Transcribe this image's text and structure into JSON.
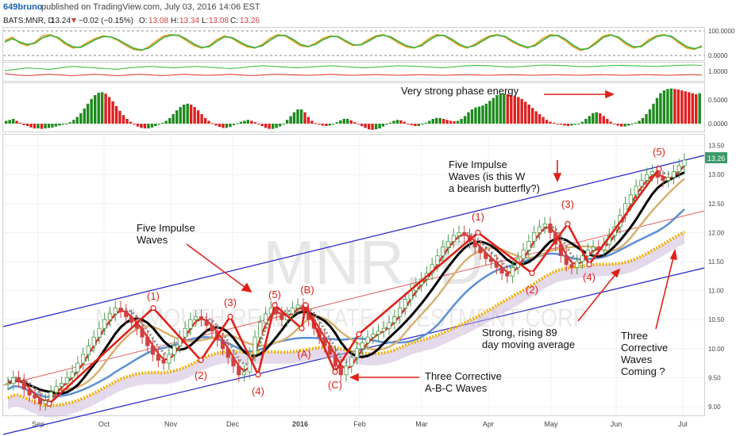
{
  "header": {
    "author": "649bruno",
    "published": "published on TradingView.com, July 03, 2016 14:06 EST",
    "symbol": "BATS:MNR, D",
    "last": "13.24",
    "change": "−0.02 (−0.15%)",
    "open_label": "O:",
    "open": "13.08",
    "high_label": "H:",
    "high": "13.34",
    "low_label": "L:",
    "low": "13.08",
    "close_label": "C:",
    "close": "13.26"
  },
  "watermark": {
    "ticker": "MNR, D",
    "company": "MONMOUTH REAL ESTATE INVESTMENT CORP"
  },
  "colors": {
    "up": "#4a9a4a",
    "down": "#d04040",
    "wave": "#e0201a",
    "channel": "#2222cc",
    "ma_black": "#000000",
    "ma_blue": "#5b8fd6",
    "ma_tan": "#d9b070",
    "ma_gray": "#8a8a8a",
    "ma_89": "#f0b000",
    "cloud": "#c9b6d8"
  },
  "chart_data": [
    {
      "type": "line",
      "panel": "oscillator-1",
      "y_ticks": [
        "100.0000",
        "0.0000"
      ],
      "ylim": [
        0,
        100
      ],
      "series": [
        {
          "values": [
            60,
            75,
            50,
            40,
            55,
            80,
            85,
            70,
            45,
            30,
            35,
            55,
            70,
            80,
            75,
            60,
            40,
            25,
            20,
            35,
            60,
            80,
            85,
            80,
            60,
            40,
            30,
            40,
            65,
            80,
            70,
            50,
            35,
            30,
            45,
            70,
            85,
            80,
            60,
            40,
            35,
            50,
            70,
            80,
            75,
            55,
            40,
            45,
            65,
            80,
            85,
            70,
            50,
            35,
            30,
            45,
            70,
            85,
            80,
            60,
            40,
            30,
            45,
            65,
            80,
            85,
            75,
            55,
            40,
            30,
            45,
            70,
            85,
            80,
            60,
            35,
            20,
            30,
            55,
            80,
            85,
            70,
            45,
            30,
            40,
            65,
            80,
            85,
            75,
            50,
            30,
            25,
            40
          ]
        },
        {
          "values": [
            55,
            68,
            55,
            45,
            50,
            72,
            82,
            74,
            52,
            35,
            33,
            48,
            65,
            77,
            76,
            64,
            46,
            30,
            22,
            30,
            52,
            74,
            83,
            82,
            66,
            46,
            33,
            36,
            58,
            76,
            73,
            56,
            40,
            32,
            40,
            62,
            80,
            82,
            66,
            46,
            36,
            45,
            64,
            77,
            77,
            60,
            44,
            43,
            58,
            76,
            83,
            75,
            56,
            40,
            32,
            40,
            62,
            80,
            82,
            66,
            46,
            33,
            40,
            58,
            76,
            83,
            78,
            60,
            44,
            33,
            40,
            62,
            80,
            82,
            66,
            42,
            25,
            28,
            48,
            74,
            83,
            75,
            52,
            35,
            36,
            58,
            76,
            83,
            78,
            56,
            36,
            28,
            35
          ]
        }
      ]
    },
    {
      "type": "line",
      "panel": "oscillator-2",
      "y_ticks": [
        "1.0000"
      ],
      "series": [
        {
          "values": [
            0.6,
            0.7,
            0.8,
            0.75,
            0.7,
            0.8,
            0.9,
            0.85,
            0.8,
            0.75,
            0.7,
            0.8,
            0.85,
            0.9,
            0.85,
            0.8,
            0.85,
            0.9,
            0.85,
            0.8,
            0.75,
            0.8,
            0.9,
            0.95,
            0.9,
            0.85,
            0.8,
            0.85,
            0.9,
            0.95,
            0.9,
            0.85,
            0.8,
            0.85,
            0.9,
            0.95,
            0.92,
            0.9,
            0.85,
            0.8,
            0.88,
            0.95,
            0.98,
            0.95,
            0.9,
            0.85,
            0.9,
            0.95,
            1.0,
            0.98,
            0.95,
            0.9,
            0.88,
            0.92,
            0.96,
            0.98,
            0.95,
            0.92,
            0.9,
            0.94,
            0.98,
            1.0,
            0.97
          ]
        },
        {
          "values": [
            0.4,
            0.3,
            0.25,
            0.3,
            0.35,
            0.3,
            0.25,
            0.3,
            0.35,
            0.3,
            0.25,
            0.3,
            0.35,
            0.3,
            0.25,
            0.3,
            0.35,
            0.3,
            0.28,
            0.3,
            0.35,
            0.3,
            0.25,
            0.3,
            0.35,
            0.32,
            0.3,
            0.28,
            0.3,
            0.35,
            0.3,
            0.28,
            0.3,
            0.33,
            0.3,
            0.28,
            0.3,
            0.32,
            0.3,
            0.28,
            0.3,
            0.32,
            0.3,
            0.28,
            0.3,
            0.32,
            0.3,
            0.28,
            0.3,
            0.32,
            0.3,
            0.28,
            0.3,
            0.32,
            0.3,
            0.28,
            0.3,
            0.32,
            0.3,
            0.28,
            0.3,
            0.32,
            0.3
          ]
        }
      ]
    },
    {
      "type": "bar",
      "panel": "phase-energy-histogram",
      "y_ticks": [
        "0.5000",
        "0.0000"
      ],
      "ylim": [
        -0.2,
        0.8
      ],
      "values": [
        0.06,
        0.08,
        0.1,
        0.06,
        0.02,
        -0.03,
        -0.05,
        -0.08,
        -0.1,
        -0.1,
        -0.11,
        -0.1,
        -0.09,
        -0.08,
        -0.06,
        -0.04,
        -0.02,
        0.0,
        0.03,
        0.08,
        0.14,
        0.22,
        0.32,
        0.42,
        0.52,
        0.6,
        0.65,
        0.66,
        0.63,
        0.56,
        0.47,
        0.37,
        0.27,
        0.18,
        0.1,
        0.04,
        -0.02,
        -0.06,
        -0.09,
        -0.1,
        -0.1,
        -0.08,
        -0.05,
        -0.02,
        0.02,
        0.06,
        0.12,
        0.2,
        0.28,
        0.35,
        0.4,
        0.42,
        0.4,
        0.35,
        0.28,
        0.2,
        0.12,
        0.06,
        0.01,
        -0.04,
        -0.07,
        -0.09,
        -0.09,
        -0.07,
        -0.03,
        0.01,
        0.04,
        0.06,
        0.08,
        0.06,
        0.03,
        -0.01,
        -0.05,
        -0.09,
        -0.11,
        -0.11,
        -0.09,
        -0.06,
        0.0,
        0.08,
        0.16,
        0.24,
        0.3,
        0.3,
        0.24,
        0.14,
        0.06,
        0.01,
        -0.02,
        -0.04,
        -0.05,
        -0.04,
        -0.01,
        0.03,
        0.07,
        0.1,
        0.1,
        0.07,
        0.03,
        -0.01,
        -0.05,
        -0.09,
        -0.12,
        -0.13,
        -0.12,
        -0.1,
        -0.06,
        -0.02,
        0.02,
        0.06,
        0.08,
        0.07,
        0.04,
        0.0,
        -0.03,
        -0.05,
        -0.05,
        -0.02,
        0.02,
        0.06,
        0.1,
        0.12,
        0.12,
        0.1,
        0.08,
        0.06,
        0.05,
        0.06,
        0.1,
        0.16,
        0.24,
        0.3,
        0.34,
        0.36,
        0.38,
        0.42,
        0.48,
        0.54,
        0.6,
        0.62,
        0.63,
        0.62,
        0.6,
        0.58,
        0.56,
        0.52,
        0.46,
        0.4,
        0.33,
        0.26,
        0.2,
        0.14,
        0.08,
        0.04,
        0.02,
        0.0,
        -0.02,
        -0.04,
        -0.05,
        -0.04,
        -0.02,
        0.0,
        0.04,
        0.1,
        0.16,
        0.22,
        0.24,
        0.22,
        0.16,
        0.1,
        0.04,
        -0.01,
        -0.04,
        -0.06,
        -0.06,
        -0.04,
        -0.01,
        0.02,
        0.06,
        0.12,
        0.2,
        0.3,
        0.42,
        0.54,
        0.64,
        0.7,
        0.73,
        0.74,
        0.73,
        0.72,
        0.7,
        0.68,
        0.66,
        0.64,
        0.62,
        0.64
      ]
    },
    {
      "type": "line",
      "panel": "price",
      "title": "",
      "x_ticks": [
        "Sep",
        "Oct",
        "Nov",
        "Dec",
        "2016",
        "Feb",
        "Mar",
        "Apr",
        "May",
        "Jun",
        "Jul"
      ],
      "y_ticks": [
        "13.50",
        "13.00",
        "12.50",
        "12.00",
        "11.50",
        "11.00",
        "10.50",
        "10.00",
        "9.50",
        "9.00"
      ],
      "ylim": [
        8.9,
        13.6
      ],
      "last_price_label": "13.26",
      "close": [
        9.4,
        9.5,
        9.45,
        9.3,
        9.2,
        9.15,
        9.05,
        9.1,
        9.25,
        9.35,
        9.4,
        9.5,
        9.6,
        9.75,
        9.9,
        10.05,
        10.2,
        10.35,
        10.5,
        10.6,
        10.7,
        10.65,
        10.55,
        10.45,
        10.35,
        10.2,
        10.05,
        9.9,
        9.8,
        9.75,
        9.9,
        10.05,
        10.2,
        10.35,
        10.5,
        10.55,
        10.5,
        10.4,
        10.3,
        10.15,
        10.0,
        9.85,
        9.7,
        9.55,
        9.6,
        9.9,
        10.2,
        10.45,
        10.6,
        10.7,
        10.6,
        10.5,
        10.6,
        10.7,
        10.75,
        10.65,
        10.5,
        10.35,
        10.2,
        10.05,
        9.9,
        9.7,
        9.55,
        9.7,
        9.85,
        10.0,
        10.1,
        10.2,
        10.25,
        10.3,
        10.35,
        10.45,
        10.55,
        10.7,
        10.85,
        11.0,
        11.1,
        11.2,
        11.3,
        11.45,
        11.6,
        11.75,
        11.85,
        11.95,
        12.0,
        11.95,
        11.85,
        11.75,
        11.65,
        11.55,
        11.5,
        11.4,
        11.3,
        11.25,
        11.4,
        11.55,
        11.7,
        11.85,
        12.0,
        12.1,
        12.15,
        12.0,
        11.8,
        11.6,
        11.45,
        11.4,
        11.5,
        11.6,
        11.7,
        11.75,
        11.7,
        11.8,
        11.95,
        12.1,
        12.3,
        12.5,
        12.65,
        12.8,
        12.9,
        13.0,
        13.05,
        12.95,
        12.9,
        12.95,
        13.05,
        13.15,
        13.25
      ]
    }
  ],
  "waves": {
    "labels": [
      "(1)",
      "(2)",
      "(3)",
      "(4)",
      "(5)",
      "(B)",
      "(A)",
      "(C)",
      "(1)",
      "(2)",
      "(3)",
      "(4)",
      "(5)"
    ],
    "wave_path_prices": [
      9.05,
      10.7,
      9.8,
      10.55,
      9.55,
      10.75,
      10.35,
      10.75,
      9.6,
      10.25,
      12.0,
      11.3,
      12.15,
      11.45,
      13.1
    ]
  },
  "annotations": {
    "five_impulse_waves": "Five Impulse Waves",
    "five_impulse_butterfly": "Five Impulse Waves (is this W a bearish butterfly?)",
    "phase_energy": "Very strong phase energy",
    "three_corrective_abc": "Three Corrective A-B-C Waves",
    "strong_89_ma": "Strong, rising 89 day moving average",
    "three_corrective_coming": "Three Corrective Waves Coming ?"
  }
}
